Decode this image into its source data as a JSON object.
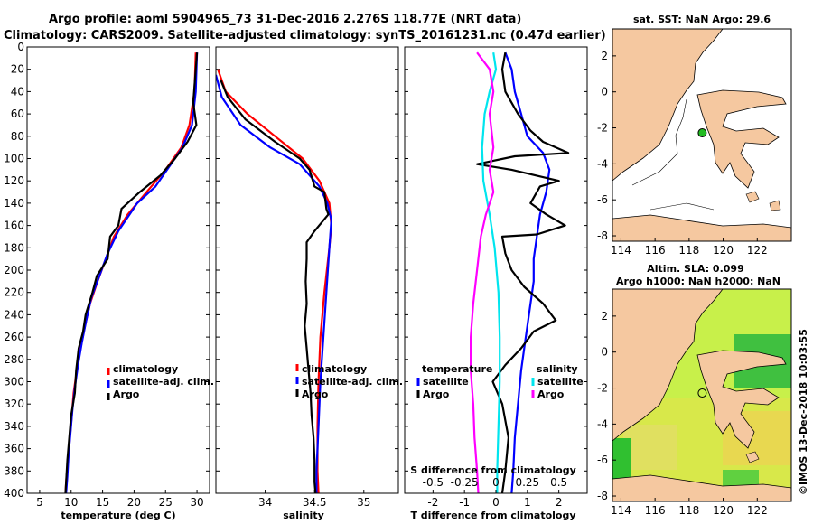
{
  "title": {
    "line1": "Argo profile: aoml 5904965_73 31-Dec-2016 2.276S 118.77E (NRT data)",
    "line2": "Climatology: CARS2009. Satellite-adjusted climatology: synTS_20161231.nc (0.47d earlier)"
  },
  "depth_ticks": [
    "0",
    "20",
    "40",
    "60",
    "80",
    "100",
    "120",
    "140",
    "160",
    "180",
    "200",
    "220",
    "240",
    "260",
    "280",
    "300",
    "320",
    "340",
    "360",
    "380",
    "400"
  ],
  "colors": {
    "climatology": "#ff0000",
    "satellite": "#0000ff",
    "argo": "#000000",
    "cyan": "#00e5ee",
    "magenta": "#ff00ff",
    "land": "#f5c8a0"
  },
  "chart_data": [
    {
      "type": "line",
      "name": "temperature",
      "xlabel": "temperature (deg C)",
      "ylabel": "depth",
      "xlim": [
        3,
        32
      ],
      "ylim": [
        400,
        0
      ],
      "xticks": [
        "5",
        "10",
        "15",
        "20",
        "25",
        "30"
      ],
      "legend": [
        "climatology",
        "satellite-adj. clim.",
        "Argo"
      ],
      "series": [
        {
          "name": "climatology",
          "points": [
            [
              29.8,
              5
            ],
            [
              29.6,
              40
            ],
            [
              28.8,
              70
            ],
            [
              27.5,
              90
            ],
            [
              25,
              110
            ],
            [
              22,
              130
            ],
            [
              19,
              150
            ],
            [
              16.8,
              170
            ],
            [
              15.5,
              190
            ],
            [
              14.2,
              210
            ],
            [
              13,
              230
            ],
            [
              12.2,
              250
            ],
            [
              11.5,
              270
            ],
            [
              10.9,
              290
            ],
            [
              10.4,
              310
            ],
            [
              10.1,
              330
            ],
            [
              9.8,
              350
            ],
            [
              9.5,
              370
            ],
            [
              9.2,
              390
            ],
            [
              9.1,
              400
            ]
          ]
        },
        {
          "name": "satellite-adj. clim.",
          "points": [
            [
              30,
              5
            ],
            [
              29.8,
              40
            ],
            [
              29.2,
              70
            ],
            [
              27.7,
              90
            ],
            [
              25.5,
              108
            ],
            [
              23.4,
              125
            ],
            [
              20.5,
              140
            ],
            [
              17.5,
              165
            ],
            [
              15.8,
              185
            ],
            [
              14.5,
              205
            ],
            [
              13.2,
              225
            ],
            [
              12.4,
              245
            ],
            [
              11.7,
              265
            ],
            [
              11.1,
              285
            ],
            [
              10.6,
              305
            ],
            [
              10.2,
              325
            ],
            [
              9.9,
              345
            ],
            [
              9.6,
              365
            ],
            [
              9.4,
              385
            ],
            [
              9.2,
              400
            ]
          ]
        },
        {
          "name": "Argo",
          "points": [
            [
              30,
              5
            ],
            [
              29.4,
              50
            ],
            [
              29.9,
              70
            ],
            [
              28.5,
              85
            ],
            [
              26.5,
              100
            ],
            [
              24.2,
              115
            ],
            [
              20.9,
              130
            ],
            [
              18,
              145
            ],
            [
              17.5,
              160
            ],
            [
              16.2,
              170
            ],
            [
              15.8,
              190
            ],
            [
              14.1,
              205
            ],
            [
              13.4,
              220
            ],
            [
              12.3,
              240
            ],
            [
              11.9,
              255
            ],
            [
              11.2,
              270
            ],
            [
              10.8,
              290
            ],
            [
              10.6,
              310
            ],
            [
              10,
              330
            ],
            [
              9.7,
              350
            ],
            [
              9.4,
              370
            ],
            [
              9.2,
              390
            ],
            [
              9.1,
              400
            ]
          ]
        }
      ]
    },
    {
      "type": "line",
      "name": "salinity",
      "xlabel": "salinity",
      "xlim": [
        33.5,
        35.35
      ],
      "ylim": [
        400,
        0
      ],
      "xticks": [
        "34",
        "34.5",
        "35"
      ],
      "legend": [
        "climatology",
        "satellite-adj. clim.",
        "Argo"
      ],
      "series": [
        {
          "name": "climatology",
          "points": [
            [
              33.52,
              20
            ],
            [
              33.6,
              40
            ],
            [
              33.82,
              60
            ],
            [
              34.1,
              80
            ],
            [
              34.38,
              100
            ],
            [
              34.55,
              120
            ],
            [
              34.65,
              140
            ],
            [
              34.67,
              160
            ],
            [
              34.65,
              180
            ],
            [
              34.6,
              220
            ],
            [
              34.56,
              260
            ],
            [
              34.54,
              300
            ],
            [
              34.53,
              340
            ],
            [
              34.53,
              380
            ],
            [
              34.54,
              400
            ]
          ]
        },
        {
          "name": "satellite-adj. clim.",
          "points": [
            [
              33.5,
              25
            ],
            [
              33.56,
              45
            ],
            [
              33.75,
              70
            ],
            [
              34.05,
              90
            ],
            [
              34.35,
              105
            ],
            [
              34.55,
              125
            ],
            [
              34.63,
              140
            ],
            [
              34.67,
              155
            ],
            [
              34.65,
              180
            ],
            [
              34.62,
              220
            ],
            [
              34.59,
              260
            ],
            [
              34.56,
              300
            ],
            [
              34.54,
              340
            ],
            [
              34.52,
              380
            ],
            [
              34.52,
              400
            ]
          ]
        },
        {
          "name": "Argo",
          "points": [
            [
              33.55,
              30
            ],
            [
              33.62,
              45
            ],
            [
              33.8,
              65
            ],
            [
              34.1,
              85
            ],
            [
              34.35,
              100
            ],
            [
              34.45,
              110
            ],
            [
              34.5,
              125
            ],
            [
              34.6,
              130
            ],
            [
              34.62,
              145
            ],
            [
              34.64,
              150
            ],
            [
              34.5,
              165
            ],
            [
              34.42,
              175
            ],
            [
              34.42,
              190
            ],
            [
              34.41,
              210
            ],
            [
              34.42,
              230
            ],
            [
              34.4,
              250
            ],
            [
              34.42,
              270
            ],
            [
              34.44,
              290
            ],
            [
              34.46,
              310
            ],
            [
              34.47,
              330
            ],
            [
              34.49,
              350
            ],
            [
              34.5,
              370
            ],
            [
              34.5,
              390
            ],
            [
              34.51,
              400
            ]
          ]
        }
      ]
    },
    {
      "type": "line",
      "name": "difference",
      "xlabel": "T difference from climatology",
      "xlabel_top": "S difference from climatology",
      "xlim": [
        -2.9,
        2.9
      ],
      "ylim": [
        400,
        0
      ],
      "xticks": [
        "-2",
        "-1",
        "0",
        "1",
        "2"
      ],
      "xticks_top": [
        "-0.5",
        "-0.25",
        "0",
        "0.25",
        "0.5"
      ],
      "legend_temperature": {
        "title": "temperature",
        "items": [
          "satellite",
          "Argo"
        ]
      },
      "legend_salinity": {
        "title": "salinity",
        "items": [
          "satellite",
          "Argo"
        ]
      },
      "series": [
        {
          "name": "T satellite",
          "points": [
            [
              0.3,
              5
            ],
            [
              0.5,
              20
            ],
            [
              0.6,
              40
            ],
            [
              0.8,
              60
            ],
            [
              1,
              80
            ],
            [
              1.5,
              95
            ],
            [
              1.7,
              110
            ],
            [
              1.6,
              130
            ],
            [
              1.4,
              150
            ],
            [
              1.3,
              170
            ],
            [
              1.2,
              190
            ],
            [
              1.2,
              210
            ],
            [
              1.1,
              230
            ],
            [
              1,
              250
            ],
            [
              0.9,
              270
            ],
            [
              0.8,
              290
            ],
            [
              0.7,
              320
            ],
            [
              0.6,
              350
            ],
            [
              0.55,
              380
            ],
            [
              0.5,
              400
            ]
          ]
        },
        {
          "name": "T Argo",
          "points": [
            [
              0.3,
              5
            ],
            [
              0.2,
              20
            ],
            [
              0.3,
              40
            ],
            [
              0.7,
              60
            ],
            [
              1.1,
              75
            ],
            [
              1.5,
              85
            ],
            [
              2.3,
              95
            ],
            [
              0.6,
              98
            ],
            [
              -0.6,
              105
            ],
            [
              0.5,
              110
            ],
            [
              2,
              120
            ],
            [
              1.4,
              125
            ],
            [
              1.1,
              140
            ],
            [
              1.6,
              150
            ],
            [
              2.2,
              160
            ],
            [
              1.3,
              168
            ],
            [
              0.2,
              170
            ],
            [
              0.3,
              185
            ],
            [
              0.5,
              200
            ],
            [
              0.9,
              215
            ],
            [
              1.5,
              230
            ],
            [
              1.9,
              245
            ],
            [
              1.2,
              255
            ],
            [
              0.8,
              270
            ],
            [
              0.3,
              285
            ],
            [
              -0.1,
              300
            ],
            [
              0.2,
              320
            ],
            [
              0.4,
              350
            ],
            [
              0.3,
              380
            ],
            [
              0.2,
              400
            ]
          ]
        },
        {
          "name": "S satellite",
          "points": [
            [
              -0.02,
              5
            ],
            [
              0,
              20
            ],
            [
              -0.05,
              40
            ],
            [
              -0.09,
              60
            ],
            [
              -0.11,
              90
            ],
            [
              -0.1,
              120
            ],
            [
              -0.05,
              150
            ],
            [
              -0.01,
              180
            ],
            [
              0.02,
              220
            ],
            [
              0.03,
              260
            ],
            [
              0.03,
              300
            ],
            [
              0.02,
              340
            ],
            [
              0.01,
              380
            ],
            [
              0.01,
              400
            ]
          ]
        },
        {
          "name": "S Argo",
          "points": [
            [
              -0.15,
              5
            ],
            [
              -0.05,
              20
            ],
            [
              -0.02,
              40
            ],
            [
              -0.05,
              60
            ],
            [
              -0.02,
              90
            ],
            [
              -0.05,
              110
            ],
            [
              -0.02,
              130
            ],
            [
              -0.08,
              150
            ],
            [
              -0.12,
              170
            ],
            [
              -0.15,
              200
            ],
            [
              -0.18,
              230
            ],
            [
              -0.2,
              260
            ],
            [
              -0.2,
              290
            ],
            [
              -0.18,
              320
            ],
            [
              -0.17,
              350
            ],
            [
              -0.15,
              380
            ],
            [
              -0.14,
              400
            ]
          ]
        }
      ]
    },
    {
      "type": "map",
      "name": "sst-map",
      "title": "sat. SST: NaN Argo: 29.6",
      "xlim": [
        113.5,
        124
      ],
      "ylim": [
        -8.3,
        3.5
      ],
      "xticks": [
        "114",
        "116",
        "118",
        "120",
        "122"
      ],
      "yticks": [
        "2",
        "0",
        "-2",
        "-4",
        "-6",
        "-8"
      ],
      "argo_position": [
        118.77,
        -2.276
      ]
    },
    {
      "type": "map",
      "name": "sla-map",
      "title1": "Altim. SLA: 0.099",
      "title2": "Argo h1000: NaN h2000: NaN",
      "xlim": [
        113.5,
        124
      ],
      "ylim": [
        -8.3,
        3.5
      ],
      "xticks": [
        "114",
        "116",
        "118",
        "120",
        "122"
      ],
      "yticks": [
        "2",
        "0",
        "-2",
        "-4",
        "-6",
        "-8"
      ],
      "argo_position": [
        118.77,
        -2.276
      ]
    }
  ],
  "watermark": "©IMOS 13-Dec-2018 10:03:55"
}
